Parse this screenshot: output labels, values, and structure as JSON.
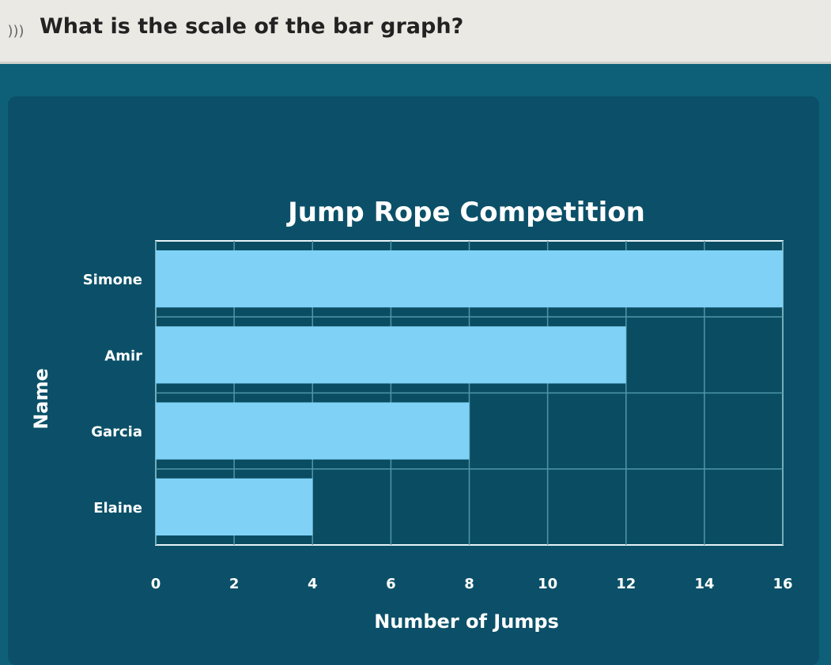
{
  "header": {
    "question": "What is the scale of the bar graph?",
    "icon": "speaker-icon"
  },
  "colors": {
    "bar": "#7fd2f6",
    "background": "#0e6079",
    "panel": "#0b5068"
  },
  "chart_data": {
    "type": "bar",
    "orientation": "horizontal",
    "title": "Jump Rope Competition",
    "xlabel": "Number of Jumps",
    "ylabel": "Name",
    "categories": [
      "Simone",
      "Amir",
      "Garcia",
      "Elaine"
    ],
    "values": [
      16,
      12,
      8,
      4
    ],
    "xlim": [
      0,
      16
    ],
    "xticks": [
      "0",
      "2",
      "4",
      "6",
      "8",
      "10",
      "12",
      "14",
      "16"
    ],
    "grid": true
  }
}
